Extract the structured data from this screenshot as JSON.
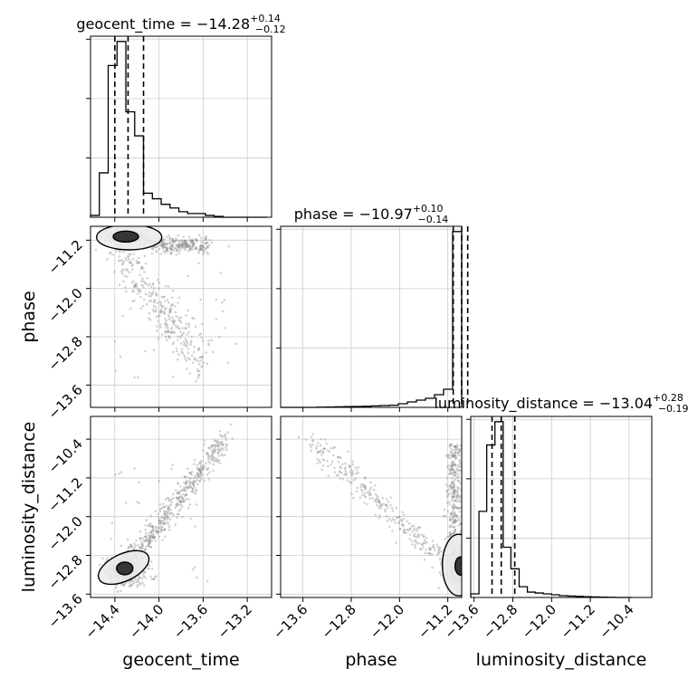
{
  "chart_data": {
    "type": "corner",
    "parameters": [
      "geocent_time",
      "phase",
      "luminosity_distance"
    ],
    "titles": [
      {
        "param": "geocent_time",
        "prefix": "geocent_time = ",
        "median": "−14.28",
        "plus": "+0.14",
        "minus": "−0.12"
      },
      {
        "param": "phase",
        "prefix": "phase = ",
        "median": "−10.97",
        "plus": "+0.10",
        "minus": "−0.14"
      },
      {
        "param": "luminosity_distance",
        "prefix": "luminosity_distance = ",
        "median": "−13.04",
        "plus": "+0.28",
        "minus": "−0.19"
      }
    ],
    "axis_labels": {
      "x": [
        "geocent_time",
        "phase",
        "luminosity_distance"
      ],
      "y": [
        "phase",
        "luminosity_distance"
      ]
    },
    "ticks": {
      "geocent_time": [
        "−14.4",
        "−14.0",
        "−13.6",
        "−13.2"
      ],
      "phase": [
        "−13.6",
        "−12.8",
        "−12.0",
        "−11.2"
      ],
      "luminosity_distance": [
        "−13.6",
        "−12.8",
        "−12.0",
        "−11.2",
        "−10.4"
      ]
    },
    "ranges": {
      "geocent_time": [
        -14.62,
        -12.98
      ],
      "phase": [
        -13.97,
        -10.97
      ],
      "luminosity_distance": [
        -13.67,
        -9.93
      ]
    },
    "quantiles": {
      "geocent_time": [
        -14.4,
        -14.28,
        -14.14
      ],
      "phase": [
        -11.11,
        -10.97,
        -10.87
      ],
      "luminosity_distance": [
        -13.23,
        -13.04,
        -12.76
      ]
    },
    "histograms": {
      "geocent_time": {
        "bin_edges": [
          -14.62,
          -14.54,
          -14.46,
          -14.38,
          -14.3,
          -14.22,
          -14.14,
          -14.06,
          -13.98,
          -13.9,
          -13.82,
          -13.74,
          -13.66,
          -13.58,
          -13.5,
          -13.42,
          -13.34,
          -13.26,
          -13.18,
          -13.1,
          -13.02
        ],
        "counts": [
          0.01,
          0.24,
          0.82,
          0.95,
          0.57,
          0.44,
          0.13,
          0.1,
          0.07,
          0.05,
          0.03,
          0.02,
          0.02,
          0.01,
          0.005,
          0,
          0,
          0,
          0,
          0
        ]
      },
      "phase": {
        "bin_edges": [
          -13.97,
          -13.82,
          -13.67,
          -13.52,
          -13.37,
          -13.22,
          -13.07,
          -12.92,
          -12.77,
          -12.62,
          -12.47,
          -12.32,
          -12.17,
          -12.02,
          -11.87,
          -11.72,
          -11.57,
          -11.42,
          -11.27,
          -11.12,
          -10.97
        ],
        "counts": [
          0,
          0,
          0,
          0,
          0.001,
          0.002,
          0.003,
          0.004,
          0.005,
          0.006,
          0.008,
          0.01,
          0.012,
          0.02,
          0.03,
          0.04,
          0.05,
          0.07,
          0.1,
          0.97
        ]
      },
      "luminosity_distance": {
        "bin_edges": [
          -13.67,
          -13.5,
          -13.34,
          -13.17,
          -13.0,
          -12.84,
          -12.67,
          -12.5,
          -12.34,
          -12.17,
          -12.0,
          -11.84,
          -11.67,
          -11.5,
          -11.34,
          -11.17,
          -11.0,
          -10.84,
          -10.67,
          -10.5,
          -10.34
        ],
        "counts": [
          0.02,
          0.48,
          0.85,
          0.98,
          0.28,
          0.16,
          0.06,
          0.03,
          0.025,
          0.02,
          0.015,
          0.01,
          0.008,
          0.006,
          0.004,
          0.003,
          0.002,
          0.001,
          0,
          0
        ]
      }
    },
    "grid": true,
    "contour_levels": 2,
    "scatter_color": "#808080"
  }
}
